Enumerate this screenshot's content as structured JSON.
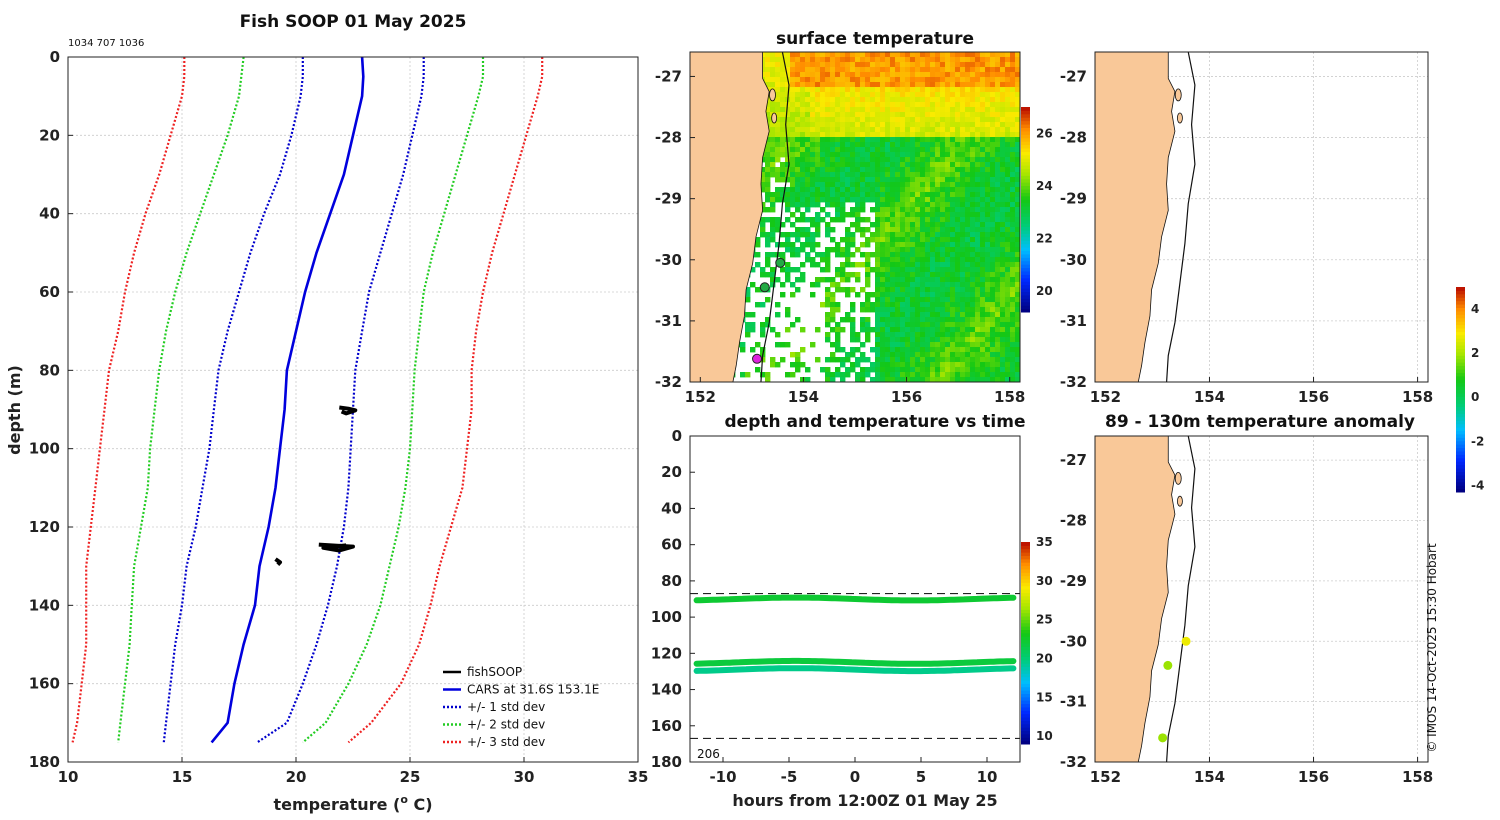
{
  "main_title": "Fish SOOP 01 May 2025",
  "id_text": "1034 707 1036",
  "credit": "© IMOS 14-Oct-2025 15:30 Hobart",
  "chart_data": [
    {
      "id": "profile",
      "type": "line",
      "title": "Fish SOOP 01 May 2025",
      "xlabel": "temperature (",
      "xlabel_sup": "o",
      "xlabel_end": " C)",
      "ylabel": "depth (m)",
      "xlim": [
        10,
        35
      ],
      "ylim": [
        180,
        0
      ],
      "xticks": [
        "10",
        "15",
        "20",
        "25",
        "30",
        "35"
      ],
      "yticks": [
        "0",
        "20",
        "40",
        "60",
        "80",
        "100",
        "120",
        "140",
        "160",
        "180"
      ],
      "xtick_values": [
        10,
        15,
        20,
        25,
        30,
        35
      ],
      "ytick_values": [
        0,
        20,
        40,
        60,
        80,
        100,
        120,
        140,
        160,
        180
      ],
      "depths": [
        0,
        5,
        10,
        20,
        30,
        40,
        50,
        60,
        70,
        80,
        90,
        100,
        110,
        120,
        130,
        140,
        150,
        160,
        170,
        175
      ],
      "series": [
        {
          "name": "CARS at 31.6S 153.1E",
          "color": "#0000dd",
          "style": "solid",
          "values": [
            22.9,
            22.95,
            22.9,
            22.5,
            22.1,
            21.5,
            20.9,
            20.4,
            20.0,
            19.6,
            19.5,
            19.3,
            19.1,
            18.8,
            18.4,
            18.2,
            17.7,
            17.3,
            17.0,
            16.3
          ]
        },
        {
          "name": "+/- 1 std dev",
          "color": "#0000cc",
          "style": "dot",
          "values": [
            20.3,
            20.3,
            20.2,
            19.8,
            19.3,
            18.6,
            18.0,
            17.5,
            17.0,
            16.6,
            16.4,
            16.2,
            15.9,
            15.6,
            15.2,
            15.0,
            14.7,
            14.5,
            14.3,
            14.2
          ]
        },
        {
          "name": "+/- 1 std dev (upper)",
          "color": "#0000cc",
          "style": "dot",
          "legend": false,
          "values": [
            25.6,
            25.6,
            25.5,
            25.1,
            24.7,
            24.2,
            23.7,
            23.2,
            22.9,
            22.6,
            22.5,
            22.4,
            22.3,
            22.1,
            21.8,
            21.4,
            20.9,
            20.3,
            19.6,
            18.3
          ]
        },
        {
          "name": "+/- 2 std dev",
          "color": "#22cc22",
          "style": "dot",
          "values": [
            17.7,
            17.6,
            17.5,
            17.0,
            16.4,
            15.8,
            15.2,
            14.7,
            14.3,
            14.0,
            13.8,
            13.6,
            13.5,
            13.2,
            12.9,
            12.8,
            12.7,
            12.5,
            12.3,
            12.2
          ]
        },
        {
          "name": "+/- 2 std dev (upper)",
          "color": "#22cc22",
          "style": "dot",
          "legend": false,
          "values": [
            28.2,
            28.2,
            28.0,
            27.5,
            27.0,
            26.5,
            26.0,
            25.6,
            25.4,
            25.2,
            25.1,
            25.0,
            24.8,
            24.5,
            24.1,
            23.7,
            23.1,
            22.3,
            21.3,
            20.3
          ]
        },
        {
          "name": "+/- 3 std dev",
          "color": "#ee2222",
          "style": "dot",
          "values": [
            15.1,
            15.1,
            15.0,
            14.5,
            14.0,
            13.4,
            12.9,
            12.5,
            12.2,
            11.8,
            11.6,
            11.4,
            11.2,
            11.0,
            10.8,
            10.8,
            10.8,
            10.6,
            10.4,
            10.2
          ]
        },
        {
          "name": "+/- 3 std dev (upper)",
          "color": "#ee2222",
          "style": "dot",
          "legend": false,
          "values": [
            30.8,
            30.8,
            30.6,
            30.1,
            29.6,
            29.1,
            28.6,
            28.2,
            27.9,
            27.7,
            27.7,
            27.5,
            27.3,
            26.8,
            26.3,
            25.9,
            25.4,
            24.6,
            23.3,
            22.3
          ]
        }
      ],
      "fishsoop_label": "fishSOOP",
      "fishsoop_segments": [
        {
          "points": [
            [
              21.9,
              89.5
            ],
            [
              22.3,
              89.8
            ],
            [
              22.6,
              90.2
            ],
            [
              22.2,
              91.0
            ],
            [
              22.0,
              90.5
            ]
          ]
        },
        {
          "points": [
            [
              21.0,
              124.5
            ],
            [
              21.8,
              124.8
            ],
            [
              22.5,
              125.0
            ],
            [
              21.9,
              126.0
            ],
            [
              21.2,
              125.3
            ],
            [
              22.2,
              124.7
            ]
          ]
        },
        {
          "points": [
            [
              19.1,
              128.2
            ],
            [
              19.3,
              129.0
            ],
            [
              19.2,
              129.6
            ]
          ]
        }
      ]
    },
    {
      "id": "sst_map",
      "type": "heatmap",
      "title": "surface temperature",
      "xlim": [
        151.8,
        158.2
      ],
      "ylim": [
        -32,
        -26.6
      ],
      "xticks": [
        "152",
        "154",
        "156",
        "158"
      ],
      "yticks": [
        "-27",
        "-28",
        "-29",
        "-30",
        "-31",
        "-32"
      ],
      "xtick_values": [
        152,
        154,
        156,
        158
      ],
      "ytick_values": [
        -27,
        -28,
        -29,
        -30,
        -31,
        -32
      ],
      "colorbar": {
        "ticks": [
          "20",
          "22",
          "24",
          "26"
        ],
        "range": [
          19.2,
          27.0
        ]
      },
      "track_points": [
        {
          "lon": 153.55,
          "lat": -30.05,
          "color": "#22aa44"
        },
        {
          "lon": 153.25,
          "lat": -30.45,
          "color": "#22aa44"
        },
        {
          "lon": 153.1,
          "lat": -31.62,
          "color": "#dd22dd"
        }
      ]
    },
    {
      "id": "time_depth",
      "type": "scatter",
      "title": "depth and temperature vs time",
      "xlabel": "hours from 12:00Z 01 May 25",
      "xlim": [
        -12.5,
        12.5
      ],
      "ylim": [
        180,
        0
      ],
      "xticks": [
        "-10",
        "-5",
        "0",
        "5",
        "10"
      ],
      "yticks": [
        "0",
        "20",
        "40",
        "60",
        "80",
        "100",
        "120",
        "140",
        "160",
        "180"
      ],
      "xtick_values": [
        -10,
        -5,
        0,
        5,
        10
      ],
      "ytick_values": [
        0,
        20,
        40,
        60,
        80,
        100,
        120,
        140,
        160,
        180
      ],
      "dashed_lines": [
        87,
        167
      ],
      "corner_label": "206",
      "colorbar": {
        "ticks": [
          "10",
          "15",
          "20",
          "25",
          "30",
          "35"
        ],
        "range": [
          9,
          35
        ]
      },
      "series": [
        {
          "name": "band-90m",
          "depth": 90,
          "temperature": 22.3
        },
        {
          "name": "band-125m",
          "depth": 125,
          "temperature": 21.9
        },
        {
          "name": "band-129m",
          "depth": 129,
          "temperature": 19.5
        }
      ]
    },
    {
      "id": "track_map",
      "type": "map",
      "xlim": [
        151.8,
        158.2
      ],
      "ylim": [
        -32,
        -26.6
      ],
      "xticks": [
        "152",
        "154",
        "156",
        "158"
      ],
      "yticks": [
        "-27",
        "-28",
        "-29",
        "-30",
        "-31",
        "-32"
      ],
      "xtick_values": [
        152,
        154,
        156,
        158
      ],
      "ytick_values": [
        -27,
        -28,
        -29,
        -30,
        -31,
        -32
      ]
    },
    {
      "id": "anomaly_map",
      "type": "map",
      "title": "89 - 130m temperature anomaly",
      "xlim": [
        151.8,
        158.2
      ],
      "ylim": [
        -32,
        -26.6
      ],
      "xticks": [
        "152",
        "154",
        "156",
        "158"
      ],
      "yticks": [
        "-27",
        "-28",
        "-29",
        "-30",
        "-31",
        "-32"
      ],
      "xtick_values": [
        152,
        154,
        156,
        158
      ],
      "ytick_values": [
        -27,
        -28,
        -29,
        -30,
        -31,
        -32
      ],
      "colorbar": {
        "ticks": [
          "-4",
          "-2",
          "0",
          "2",
          "4"
        ],
        "range": [
          -4.3,
          5.0
        ]
      },
      "points": [
        {
          "lon": 153.55,
          "lat": -30.0,
          "anomaly": 2.8
        },
        {
          "lon": 153.2,
          "lat": -30.4,
          "anomaly": 1.9
        },
        {
          "lon": 153.1,
          "lat": -31.6,
          "anomaly": 1.9
        }
      ]
    }
  ]
}
